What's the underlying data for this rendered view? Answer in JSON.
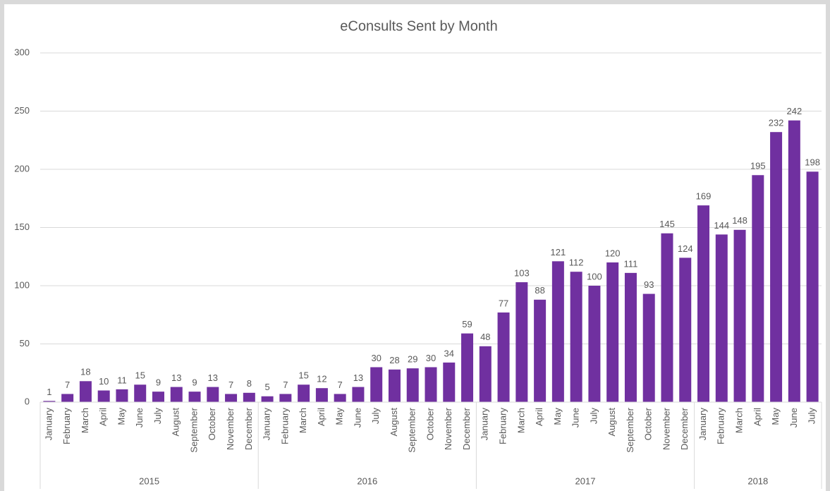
{
  "chart_data": {
    "type": "bar",
    "title": "eConsults Sent by Month",
    "color": "#7030a0",
    "ylim": [
      0,
      300
    ],
    "yticks": [
      0,
      50,
      100,
      150,
      200,
      250,
      300
    ],
    "grid": true,
    "groups": [
      {
        "name": "2015",
        "categories": [
          "January",
          "February",
          "March",
          "April",
          "May",
          "June",
          "July",
          "August",
          "September",
          "October",
          "November",
          "December"
        ],
        "values": [
          1,
          7,
          18,
          10,
          11,
          15,
          9,
          13,
          9,
          13,
          7,
          8
        ]
      },
      {
        "name": "2016",
        "categories": [
          "January",
          "February",
          "March",
          "April",
          "May",
          "June",
          "July",
          "August",
          "September",
          "October",
          "November",
          "December"
        ],
        "values": [
          5,
          7,
          15,
          12,
          7,
          13,
          30,
          28,
          29,
          30,
          34,
          59
        ]
      },
      {
        "name": "2017",
        "categories": [
          "January",
          "February",
          "March",
          "April",
          "May",
          "June",
          "July",
          "August",
          "September",
          "October",
          "November",
          "December"
        ],
        "values": [
          48,
          77,
          103,
          88,
          121,
          112,
          100,
          120,
          111,
          93,
          145,
          124
        ]
      },
      {
        "name": "2018",
        "categories": [
          "January",
          "February",
          "March",
          "April",
          "May",
          "June",
          "July"
        ],
        "values": [
          169,
          144,
          148,
          195,
          232,
          242,
          198
        ]
      }
    ]
  }
}
